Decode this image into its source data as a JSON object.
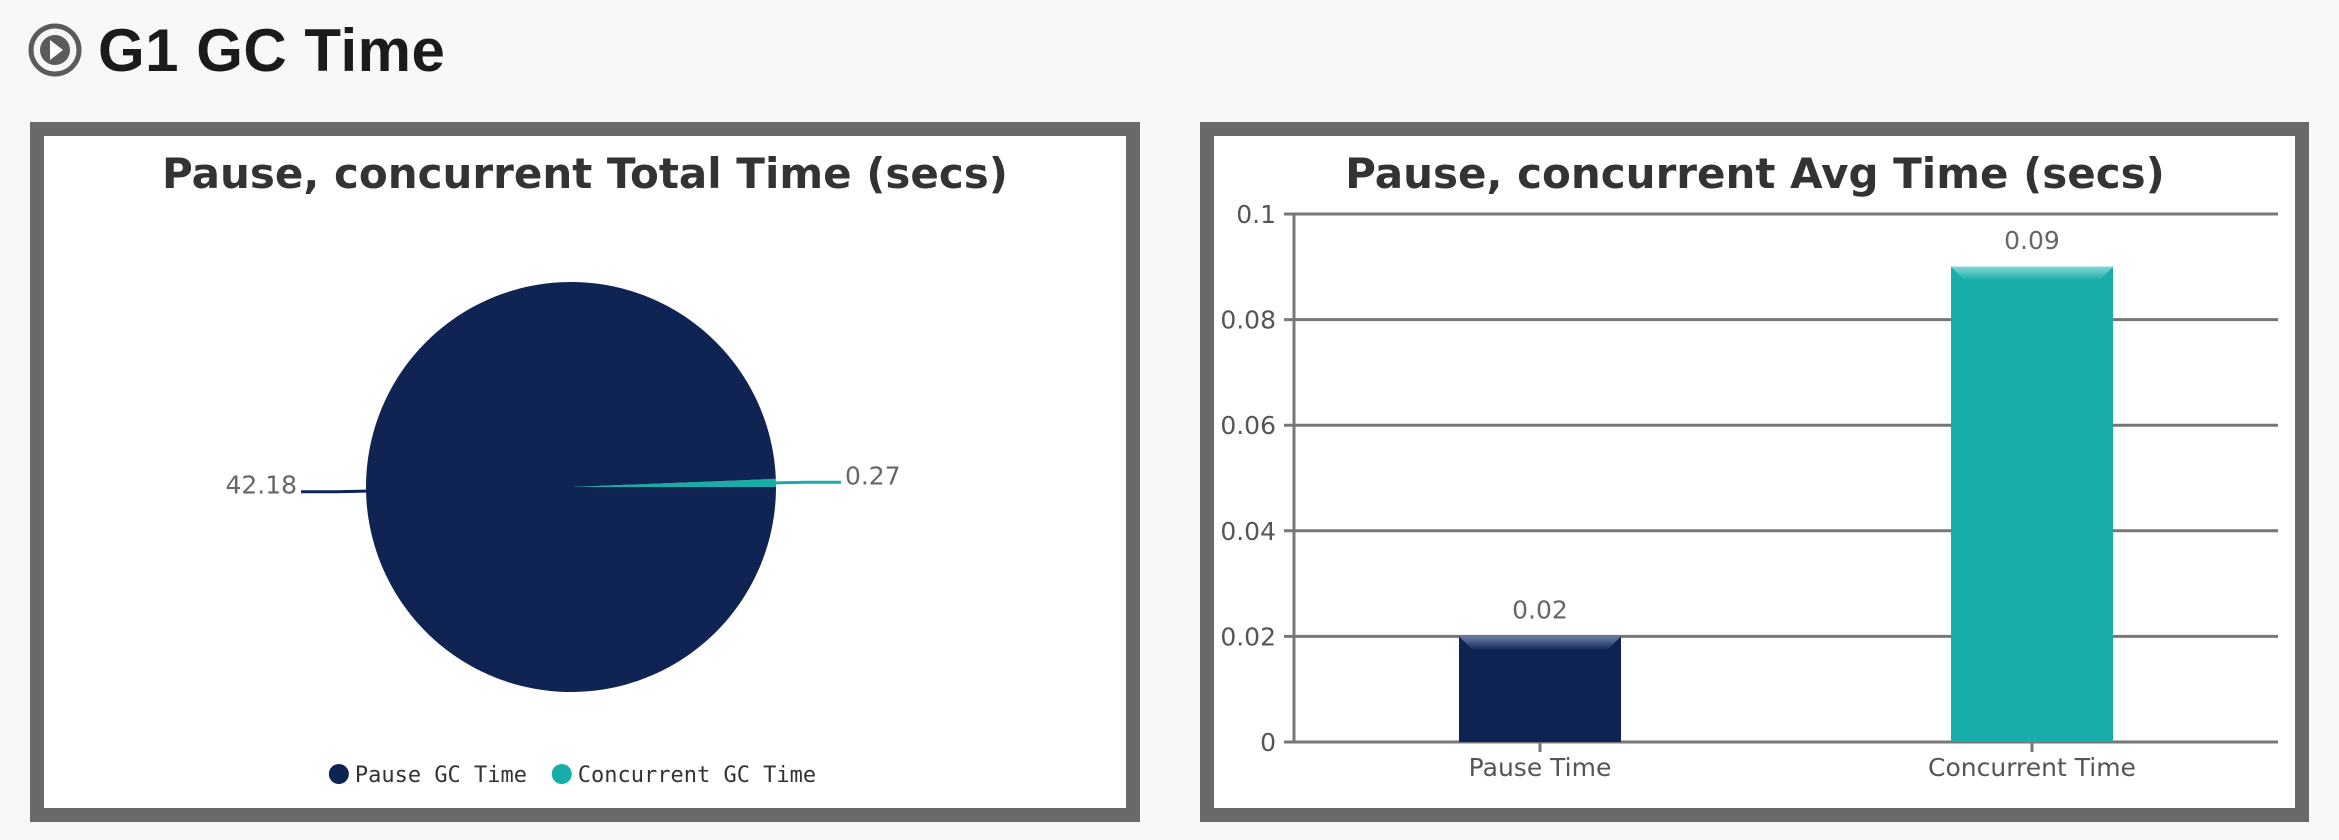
{
  "page": {
    "title": "G1 GC Time",
    "icon": "compass-icon"
  },
  "chart_data": [
    {
      "type": "pie",
      "title": "Pause, concurrent Total Time (secs)",
      "categories": [
        "Pause GC Time",
        "Concurrent GC Time"
      ],
      "values": [
        42.18,
        0.27
      ],
      "data_labels": [
        "42.18",
        "0.27"
      ],
      "colors": [
        "#0f2453",
        "#17ada8"
      ],
      "legend": {
        "position": "bottom",
        "entries": [
          "Pause GC Time",
          "Concurrent GC Time"
        ]
      }
    },
    {
      "type": "bar",
      "title": "Pause, concurrent Avg Time (secs)",
      "categories": [
        "Pause Time",
        "Concurrent Time"
      ],
      "values": [
        0.02,
        0.09
      ],
      "data_labels": [
        "0.02",
        "0.09"
      ],
      "colors": [
        "#0f2453",
        "#17ada8"
      ],
      "ylim": [
        0,
        0.1
      ],
      "yticks": [
        0,
        0.02,
        0.04,
        0.06,
        0.08,
        0.1
      ],
      "ytick_labels": [
        "0",
        "0.02",
        "0.04",
        "0.06",
        "0.08",
        "0.1"
      ],
      "grid": true,
      "xlabel": "",
      "ylabel": ""
    }
  ]
}
